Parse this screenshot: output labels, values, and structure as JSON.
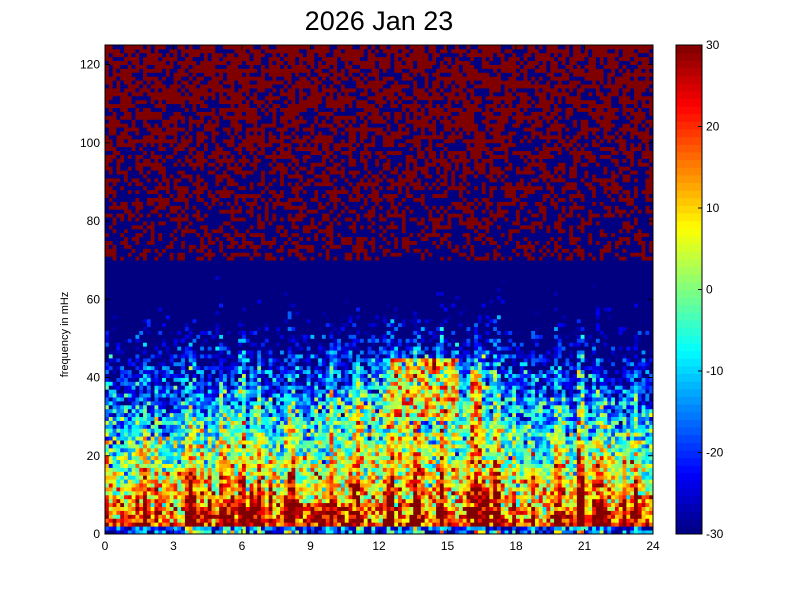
{
  "chart_data": {
    "type": "heatmap",
    "title": "2026 Jan 23",
    "xlabel": "",
    "ylabel": "frequency in mHz",
    "xlim": [
      0,
      24
    ],
    "ylim": [
      0,
      125
    ],
    "x_ticks": [
      "0",
      "3",
      "6",
      "9",
      "12",
      "15",
      "18",
      "21",
      "24"
    ],
    "y_ticks": [
      "0",
      "20",
      "40",
      "60",
      "80",
      "100",
      "120"
    ],
    "colorbar": {
      "colormap": "jet",
      "range": [
        -30,
        30
      ],
      "ticks": [
        "30",
        "20",
        "10",
        "0",
        "-10",
        "-20",
        "-30"
      ]
    },
    "x_bin_width": 0.167,
    "y_bin_width": 1.0,
    "transient_hours": [
      1.8,
      3.8,
      5.1,
      6.0,
      6.8,
      8.2,
      9.9,
      11.1,
      12.5,
      13.6,
      14.8,
      16.4,
      17.2,
      19.9,
      20.9,
      21.6,
      23.3
    ],
    "hotspot_bands": [
      {
        "x_range": [
          5.5,
          6.3
        ],
        "y_range": [
          2,
          7
        ],
        "db": 27
      },
      {
        "x_range": [
          8.0,
          11.4
        ],
        "y_range": [
          2,
          8
        ],
        "db": 24
      },
      {
        "x_range": [
          15.8,
          16.8
        ],
        "y_range": [
          2,
          12
        ],
        "db": 28
      },
      {
        "x_range": [
          16.1,
          16.6
        ],
        "y_range": [
          12,
          42
        ],
        "db": 16
      },
      {
        "x_range": [
          21.0,
          22.0
        ],
        "y_range": [
          3,
          6
        ],
        "db": 20
      },
      {
        "x_range": [
          12.5,
          15.5
        ],
        "y_range": [
          30,
          45
        ],
        "db": 10
      }
    ]
  }
}
